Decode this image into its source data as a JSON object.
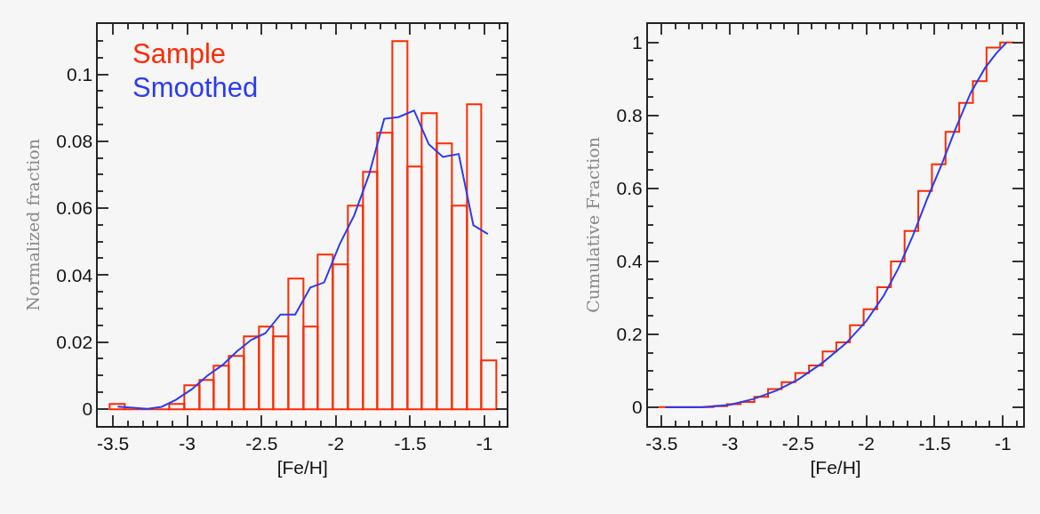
{
  "chart_data": [
    {
      "type": "histogram",
      "xlabel": "[Fe/H]",
      "ylabel": "Normalized fraction",
      "xlim": [
        -3.6,
        -0.85
      ],
      "ylim": [
        -0.005,
        0.115
      ],
      "xticks": [
        -3.5,
        -3,
        -2.5,
        -2,
        -1.5,
        -1
      ],
      "yticks": [
        0,
        0.02,
        0.04,
        0.06,
        0.08,
        0.1
      ],
      "legend": "top left",
      "grid": false,
      "bins": [
        -3.52,
        -3.42,
        -3.32,
        -3.22,
        -3.12,
        -3.02,
        -2.92,
        -2.82,
        -2.72,
        -2.62,
        -2.52,
        -2.42,
        -2.32,
        -2.22,
        -2.12,
        -2.02,
        -1.92,
        -1.82,
        -1.72,
        -1.62,
        -1.52,
        -1.42,
        -1.32,
        -1.22,
        -1.12,
        -1.02,
        -0.92
      ],
      "series": [
        {
          "name": "Sample",
          "color": "#ff2a00",
          "values": [
            0.0015,
            0,
            0,
            0,
            0.0015,
            0.0072,
            0.0087,
            0.013,
            0.0159,
            0.0216,
            0.0245,
            0.0216,
            0.0391,
            0.0246,
            0.0462,
            0.0433,
            0.0608,
            0.071,
            0.0825,
            0.11,
            0.0724,
            0.0883,
            0.0795,
            0.0608,
            0.091,
            0.0145
          ]
        },
        {
          "name": "Smoothed",
          "type": "line",
          "color": "#2a3bf0",
          "x": [
            -3.468,
            -3.267,
            -3.172,
            -3.077,
            -2.971,
            -2.865,
            -2.76,
            -2.665,
            -2.57,
            -2.475,
            -2.373,
            -2.274,
            -2.172,
            -2.079,
            -1.974,
            -1.876,
            -1.777,
            -1.675,
            -1.58,
            -1.474,
            -1.375,
            -1.28,
            -1.174,
            -1.075,
            -0.978
          ],
          "values": [
            0.0007,
            0,
            0.0006,
            0.0027,
            0.0058,
            0.0099,
            0.0132,
            0.0172,
            0.0206,
            0.0226,
            0.0282,
            0.0282,
            0.0363,
            0.0378,
            0.0493,
            0.0579,
            0.07,
            0.0867,
            0.0872,
            0.0892,
            0.0791,
            0.0753,
            0.0762,
            0.0549,
            0.0523
          ]
        }
      ]
    },
    {
      "type": "step",
      "xlabel": "[Fe/H]",
      "ylabel": "Cumulative Fraction",
      "xlim": [
        -3.6,
        -0.85
      ],
      "ylim": [
        -0.05,
        1.05
      ],
      "xticks": [
        -3.5,
        -3,
        -2.5,
        -2,
        -1.5,
        -1
      ],
      "yticks": [
        0,
        0.2,
        0.4,
        0.6,
        0.8,
        1
      ],
      "grid": false,
      "series": [
        {
          "color": "#ff2a00",
          "x": [
            -3.52,
            -3.42,
            -3.32,
            -3.22,
            -3.12,
            -3.02,
            -2.92,
            -2.82,
            -2.72,
            -2.62,
            -2.52,
            -2.42,
            -2.32,
            -2.22,
            -2.12,
            -2.02,
            -1.92,
            -1.82,
            -1.72,
            -1.62,
            -1.52,
            -1.42,
            -1.32,
            -1.22,
            -1.12,
            -1.02,
            -0.92
          ],
          "values": [
            0.001,
            0.001,
            0.001,
            0.001,
            0.003,
            0.009,
            0.015,
            0.029,
            0.05,
            0.069,
            0.094,
            0.115,
            0.153,
            0.178,
            0.225,
            0.269,
            0.329,
            0.4,
            0.483,
            0.593,
            0.666,
            0.755,
            0.834,
            0.894,
            0.986,
            1.0,
            1.0
          ]
        },
        {
          "type": "line",
          "color": "#2a3bf0",
          "x": [
            -3.472,
            -3.208,
            -3.0,
            -2.826,
            -2.657,
            -2.5,
            -2.318,
            -2.148,
            -2.0,
            -1.873,
            -1.767,
            -1.661,
            -1.555,
            -1.449,
            -1.343,
            -1.237,
            -1.131,
            -1.047,
            -0.973
          ],
          "values": [
            0,
            0,
            0.007,
            0.023,
            0.046,
            0.076,
            0.123,
            0.176,
            0.237,
            0.306,
            0.38,
            0.469,
            0.571,
            0.665,
            0.767,
            0.861,
            0.93,
            0.971,
            1.0
          ]
        }
      ]
    }
  ]
}
